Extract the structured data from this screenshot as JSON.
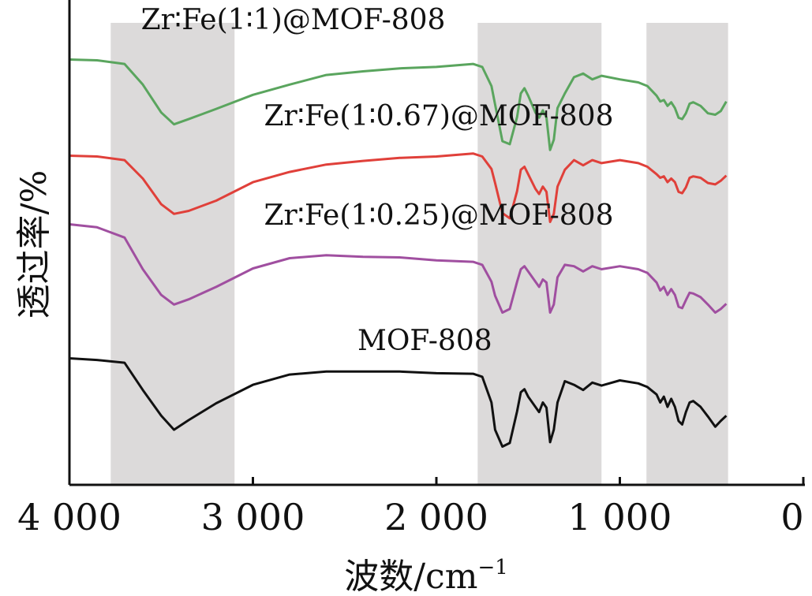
{
  "chart_data": {
    "type": "line",
    "xlabel": "波数/cm",
    "xlabel_sup": "−1",
    "ylabel": "透过率/%",
    "xlim": [
      4000,
      0
    ],
    "x_reversed": true,
    "x_ticks": [
      {
        "value": 4000,
        "label": "4 000"
      },
      {
        "value": 3000,
        "label": "3 000"
      },
      {
        "value": 2000,
        "label": "2 000"
      },
      {
        "value": 1000,
        "label": "1 000"
      },
      {
        "value": 0,
        "label": "0"
      }
    ],
    "y_ticks_shown": false,
    "grid": false,
    "legend": "none",
    "shaded_regions": [
      {
        "x_from": 3775,
        "x_to": 3100,
        "color": "#dcdada"
      },
      {
        "x_from": 1775,
        "x_to": 1100,
        "color": "#dcdada"
      },
      {
        "x_from": 855,
        "x_to": 410,
        "color": "#dcdada"
      }
    ],
    "series": [
      {
        "name": "MOF-808",
        "color": "#111111",
        "x": [
          4000,
          3850,
          3700,
          3600,
          3500,
          3430,
          3350,
          3200,
          3000,
          2800,
          2600,
          2400,
          2200,
          2000,
          1800,
          1750,
          1700,
          1680,
          1640,
          1600,
          1560,
          1540,
          1520,
          1500,
          1460,
          1440,
          1420,
          1400,
          1380,
          1360,
          1340,
          1300,
          1250,
          1200,
          1150,
          1100,
          1000,
          900,
          850,
          800,
          780,
          760,
          740,
          720,
          700,
          680,
          660,
          640,
          620,
          600,
          560,
          520,
          480,
          450,
          420
        ],
        "y": [
          0.0,
          0.02,
          0.1,
          0.7,
          1.3,
          1.6,
          1.4,
          1.0,
          0.6,
          0.35,
          0.3,
          0.28,
          0.3,
          0.32,
          0.35,
          0.4,
          1.0,
          1.6,
          2.0,
          1.9,
          1.2,
          0.75,
          0.7,
          0.85,
          1.1,
          1.2,
          1.0,
          1.1,
          1.9,
          1.6,
          1.0,
          0.5,
          0.6,
          0.7,
          0.55,
          0.6,
          0.5,
          0.55,
          0.65,
          0.8,
          1.0,
          0.85,
          1.1,
          0.9,
          1.1,
          1.4,
          1.5,
          1.2,
          1.0,
          0.95,
          1.1,
          1.3,
          1.55,
          1.4,
          1.3
        ],
        "label_pos": {
          "x": 2430,
          "y": -0.2
        }
      },
      {
        "name": "Zr∶Fe(1∶0.25)@MOF-808",
        "color": "#a04fa0",
        "x": [
          4000,
          3850,
          3700,
          3600,
          3500,
          3430,
          3350,
          3200,
          3000,
          2800,
          2600,
          2400,
          2200,
          2000,
          1800,
          1750,
          1700,
          1680,
          1640,
          1600,
          1560,
          1540,
          1520,
          1500,
          1460,
          1440,
          1420,
          1400,
          1380,
          1360,
          1340,
          1300,
          1250,
          1200,
          1150,
          1100,
          1000,
          900,
          850,
          800,
          780,
          760,
          740,
          720,
          700,
          680,
          660,
          640,
          620,
          600,
          560,
          520,
          480,
          450,
          420
        ],
        "y": [
          0.0,
          0.05,
          0.3,
          1.0,
          1.6,
          1.8,
          1.7,
          1.4,
          1.0,
          0.75,
          0.7,
          0.72,
          0.75,
          0.8,
          0.85,
          0.9,
          1.3,
          1.6,
          2.0,
          1.9,
          1.3,
          1.0,
          0.95,
          1.05,
          1.3,
          1.4,
          1.25,
          1.3,
          2.0,
          1.8,
          1.2,
          0.9,
          0.95,
          1.05,
          0.95,
          1.0,
          0.95,
          1.0,
          1.1,
          1.3,
          1.5,
          1.4,
          1.6,
          1.45,
          1.6,
          1.85,
          1.9,
          1.7,
          1.55,
          1.55,
          1.65,
          1.8,
          2.0,
          1.9,
          1.8
        ],
        "label_pos": {
          "x": 2940,
          "y": 0.0
        }
      },
      {
        "name": "Zr∶Fe(1∶0.67)@MOF-808",
        "color": "#e0403a",
        "x": [
          4000,
          3850,
          3700,
          3600,
          3500,
          3430,
          3350,
          3200,
          3000,
          2800,
          2600,
          2400,
          2200,
          2000,
          1800,
          1750,
          1700,
          1680,
          1640,
          1600,
          1560,
          1540,
          1520,
          1500,
          1460,
          1440,
          1420,
          1400,
          1380,
          1360,
          1340,
          1300,
          1250,
          1200,
          1150,
          1100,
          1000,
          900,
          850,
          800,
          780,
          760,
          740,
          720,
          700,
          680,
          660,
          640,
          620,
          600,
          560,
          520,
          480,
          450,
          420
        ],
        "y": [
          0.0,
          0.0,
          0.1,
          0.5,
          1.1,
          1.3,
          1.25,
          1.0,
          0.6,
          0.35,
          0.2,
          0.1,
          0.05,
          0.0,
          -0.05,
          0.0,
          0.3,
          0.6,
          1.3,
          1.4,
          0.8,
          0.3,
          0.25,
          0.4,
          0.75,
          0.85,
          0.7,
          0.8,
          1.5,
          1.3,
          0.7,
          0.3,
          0.1,
          0.2,
          0.1,
          0.15,
          0.1,
          0.15,
          0.25,
          0.4,
          0.5,
          0.45,
          0.6,
          0.5,
          0.6,
          0.8,
          0.85,
          0.7,
          0.5,
          0.45,
          0.5,
          0.6,
          0.65,
          0.55,
          0.45
        ],
        "label_pos": {
          "x": 2940,
          "y": -0.7
        }
      },
      {
        "name": "Zr∶Fe(1∶1)@MOF-808",
        "color": "#5aa55e",
        "x": [
          4000,
          3850,
          3700,
          3600,
          3500,
          3430,
          3350,
          3200,
          3000,
          2800,
          2600,
          2400,
          2200,
          2000,
          1800,
          1750,
          1700,
          1680,
          1640,
          1600,
          1560,
          1540,
          1520,
          1500,
          1460,
          1440,
          1420,
          1400,
          1380,
          1360,
          1340,
          1300,
          1250,
          1200,
          1150,
          1100,
          1000,
          900,
          850,
          800,
          780,
          760,
          740,
          720,
          700,
          680,
          660,
          640,
          620,
          600,
          560,
          520,
          480,
          450,
          420
        ],
        "y": [
          0.0,
          0.0,
          0.1,
          0.55,
          1.2,
          1.45,
          1.35,
          1.1,
          0.8,
          0.55,
          0.35,
          0.25,
          0.2,
          0.15,
          0.1,
          0.15,
          0.6,
          1.0,
          1.85,
          1.9,
          1.3,
          0.75,
          0.65,
          0.8,
          1.2,
          1.3,
          1.15,
          1.3,
          2.05,
          1.8,
          1.1,
          0.75,
          0.4,
          0.3,
          0.45,
          0.35,
          0.45,
          0.5,
          0.6,
          0.8,
          0.95,
          0.9,
          1.05,
          0.95,
          1.1,
          1.3,
          1.35,
          1.2,
          1.0,
          0.95,
          1.05,
          1.2,
          1.25,
          1.15,
          0.95
        ],
        "label_pos": {
          "x": 3610,
          "y": -0.7
        }
      }
    ]
  }
}
